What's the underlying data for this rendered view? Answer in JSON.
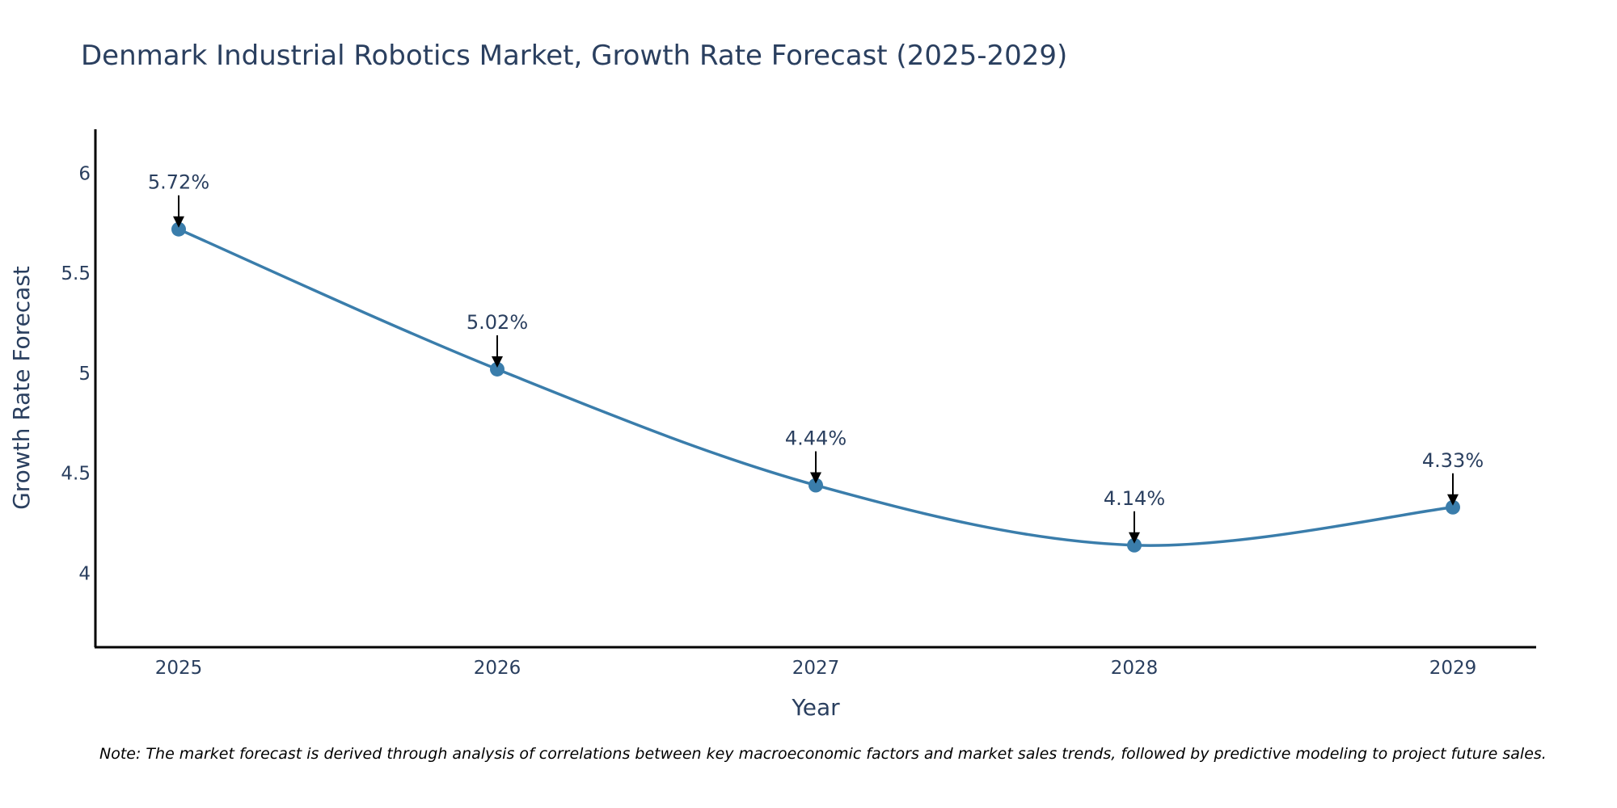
{
  "chart_data": {
    "type": "line",
    "title": "Denmark Industrial Robotics Market, Growth Rate Forecast (2025-2029)",
    "xlabel": "Year",
    "ylabel": "Growth Rate Forecast",
    "categories": [
      "2025",
      "2026",
      "2027",
      "2028",
      "2029"
    ],
    "values": [
      5.72,
      5.02,
      4.44,
      4.14,
      4.33
    ],
    "data_labels": [
      "5.72%",
      "5.02%",
      "4.44%",
      "4.14%",
      "4.33%"
    ],
    "ylim": [
      3.63,
      6.22
    ],
    "yticks": [
      4,
      4.5,
      5,
      5.5,
      6
    ],
    "ytick_labels": [
      "4",
      "4.5",
      "5",
      "5.5",
      "6"
    ],
    "line_shape": "spline",
    "grid": false,
    "series_color": "#3a7dab",
    "annotation_color": "#000000",
    "text_color": "#2a3f5f"
  },
  "note": "Note: The market forecast is derived through analysis of correlations between key macroeconomic factors and market sales trends, followed by predictive modeling to project future sales."
}
